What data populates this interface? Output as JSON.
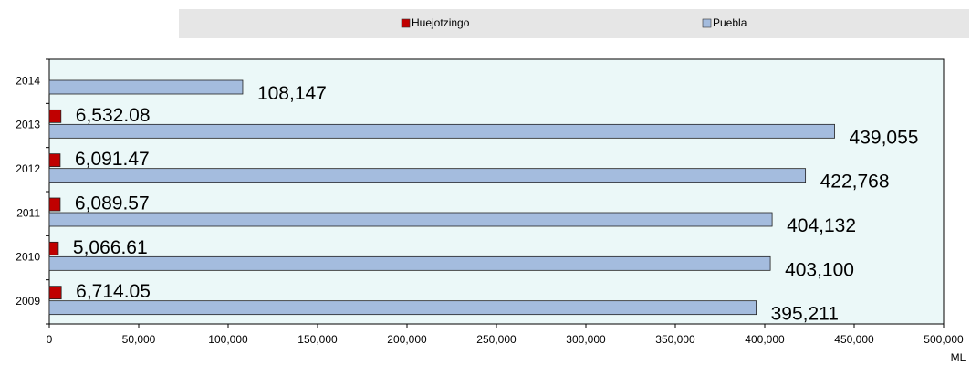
{
  "chart_data": {
    "type": "hbar",
    "categories": [
      "2014",
      "2013",
      "2012",
      "2011",
      "2010",
      "2009"
    ],
    "series": [
      {
        "name": "Huejotzingo",
        "color": "#c00000",
        "values": [
          null,
          6532.08,
          6091.47,
          6089.57,
          5066.61,
          6714.05
        ],
        "value_labels": [
          null,
          "6,532.08",
          "6,091.47",
          "6,089.57",
          "5,066.61",
          "6,714.05"
        ]
      },
      {
        "name": "Puebla",
        "color": "#a4bcde",
        "values": [
          108147,
          439055,
          422768,
          404132,
          403100,
          395211
        ],
        "value_labels": [
          "108,147",
          "439,055",
          "422,768",
          "404,132",
          "403,100",
          "395,211"
        ]
      }
    ],
    "xlim": [
      0,
      500000
    ],
    "xticks": [
      0,
      {
        "value": 50000,
        "label": "50,000"
      },
      {
        "value": 100000,
        "label": "100,000"
      },
      {
        "value": 150000,
        "label": "150,000"
      },
      {
        "value": 200000,
        "label": "200,000"
      },
      {
        "value": 250000,
        "label": "250,000"
      },
      {
        "value": 300000,
        "label": "300,000"
      },
      {
        "value": 350000,
        "label": "350,000"
      },
      {
        "value": 400000,
        "label": "400,000"
      },
      {
        "value": 450000,
        "label": "450,000"
      },
      {
        "value": 500000,
        "label": "500,000"
      }
    ],
    "x_label": "ML",
    "legend": "top"
  }
}
